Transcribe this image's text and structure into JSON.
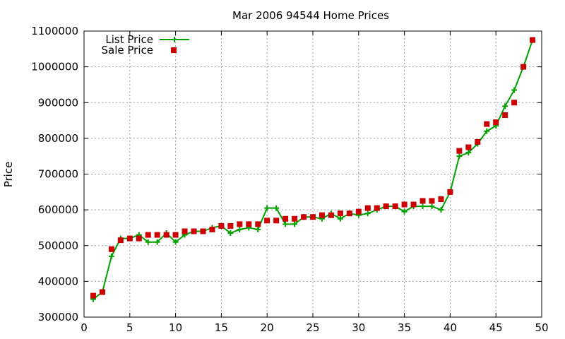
{
  "chart_data": {
    "type": "line",
    "title": "Mar 2006 94544 Home Prices",
    "xlabel": "",
    "ylabel": "Price",
    "xlim": [
      0,
      50
    ],
    "ylim": [
      300000,
      1100000
    ],
    "xticks": [
      0,
      5,
      10,
      15,
      20,
      25,
      30,
      35,
      40,
      45,
      50
    ],
    "yticks": [
      300000,
      400000,
      500000,
      600000,
      700000,
      800000,
      900000,
      1000000,
      1100000
    ],
    "grid": true,
    "legend_position": "top-left",
    "x": [
      1,
      2,
      3,
      4,
      5,
      6,
      7,
      8,
      9,
      10,
      11,
      12,
      13,
      14,
      15,
      16,
      17,
      18,
      19,
      20,
      21,
      22,
      23,
      24,
      25,
      26,
      27,
      28,
      29,
      30,
      31,
      32,
      33,
      34,
      35,
      36,
      37,
      38,
      39,
      40,
      41,
      42,
      43,
      44,
      45,
      46,
      47,
      48,
      49
    ],
    "series": [
      {
        "name": "List Price",
        "style": "line-cross",
        "color": "#00a000",
        "values": [
          350000,
          370000,
          470000,
          520000,
          520000,
          530000,
          510000,
          510000,
          535000,
          510000,
          530000,
          540000,
          540000,
          550000,
          555000,
          535000,
          545000,
          550000,
          545000,
          605000,
          605000,
          560000,
          560000,
          580000,
          580000,
          575000,
          590000,
          575000,
          590000,
          585000,
          590000,
          600000,
          610000,
          610000,
          595000,
          610000,
          610000,
          610000,
          600000,
          650000,
          750000,
          760000,
          785000,
          820000,
          835000,
          890000,
          935000,
          1000000,
          1075000
        ]
      },
      {
        "name": "Sale Price",
        "style": "square",
        "color": "#cc0000",
        "values": [
          360000,
          370000,
          490000,
          515000,
          520000,
          520000,
          530000,
          530000,
          530000,
          530000,
          540000,
          540000,
          540000,
          545000,
          555000,
          555000,
          560000,
          560000,
          560000,
          570000,
          570000,
          575000,
          575000,
          580000,
          580000,
          585000,
          585000,
          590000,
          590000,
          595000,
          605000,
          605000,
          610000,
          610000,
          615000,
          615000,
          625000,
          625000,
          630000,
          650000,
          765000,
          775000,
          790000,
          840000,
          845000,
          865000,
          900000,
          1000000,
          1075000
        ]
      }
    ]
  }
}
